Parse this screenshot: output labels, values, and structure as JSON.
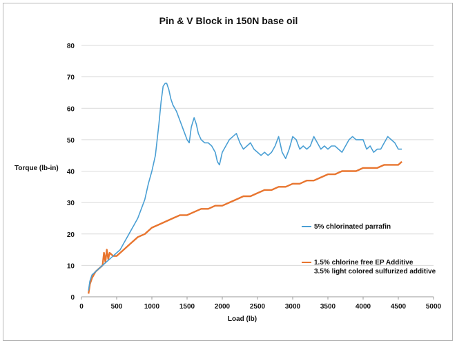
{
  "chart_data": {
    "type": "line",
    "title": "Pin & V Block in 150N base oil",
    "xlabel": "Load (lb)",
    "ylabel": "Torque (lb-in)",
    "xlim": [
      0,
      5000
    ],
    "ylim": [
      0,
      80
    ],
    "xticks": [
      "0",
      "500",
      "1000",
      "1500",
      "2000",
      "2500",
      "3000",
      "3500",
      "4000",
      "4500",
      "5000"
    ],
    "yticks": [
      "0",
      "10",
      "20",
      "30",
      "40",
      "50",
      "60",
      "70",
      "80"
    ],
    "grid": "horizontal",
    "legend_position": "right",
    "series": [
      {
        "name": "5% chlorinated parrafin",
        "color": "#4a9fd4",
        "x": [
          100,
          120,
          150,
          200,
          250,
          300,
          350,
          400,
          450,
          500,
          550,
          600,
          650,
          700,
          750,
          800,
          850,
          900,
          950,
          1000,
          1050,
          1100,
          1130,
          1160,
          1190,
          1210,
          1240,
          1270,
          1300,
          1350,
          1400,
          1450,
          1500,
          1530,
          1560,
          1600,
          1630,
          1660,
          1700,
          1750,
          1800,
          1850,
          1900,
          1930,
          1960,
          2000,
          2050,
          2100,
          2150,
          2200,
          2250,
          2300,
          2350,
          2400,
          2450,
          2500,
          2550,
          2600,
          2650,
          2700,
          2750,
          2800,
          2850,
          2900,
          2950,
          3000,
          3050,
          3100,
          3150,
          3200,
          3250,
          3300,
          3350,
          3400,
          3450,
          3500,
          3550,
          3600,
          3650,
          3700,
          3750,
          3800,
          3850,
          3900,
          3950,
          4000,
          4050,
          4100,
          4150,
          4200,
          4250,
          4300,
          4350,
          4400,
          4450,
          4500,
          4550
        ],
        "y": [
          2,
          5,
          7,
          8,
          9,
          10,
          11,
          12,
          13,
          14,
          15,
          17,
          19,
          21,
          23,
          25,
          28,
          31,
          36,
          40,
          45,
          55,
          62,
          67,
          68,
          68,
          66,
          63,
          61,
          59,
          56,
          53,
          50,
          49,
          54,
          57,
          55,
          52,
          50,
          49,
          49,
          48,
          46,
          43,
          42,
          46,
          48,
          50,
          51,
          52,
          49,
          47,
          48,
          49,
          47,
          46,
          45,
          46,
          45,
          46,
          48,
          51,
          46,
          44,
          47,
          51,
          50,
          47,
          48,
          47,
          48,
          51,
          49,
          47,
          48,
          47,
          48,
          48,
          47,
          46,
          48,
          50,
          51,
          50,
          50,
          50,
          47,
          48,
          46,
          47,
          47,
          49,
          51,
          50,
          49,
          47,
          47
        ]
      },
      {
        "name": "1.5% chlorine free EP Additive\n3.5% light colored sulfurized additive",
        "color": "#e8752f",
        "x": [
          100,
          120,
          150,
          200,
          250,
          300,
          320,
          340,
          360,
          380,
          400,
          450,
          500,
          600,
          700,
          800,
          900,
          1000,
          1100,
          1200,
          1300,
          1400,
          1500,
          1600,
          1700,
          1800,
          1900,
          2000,
          2100,
          2200,
          2300,
          2400,
          2500,
          2600,
          2700,
          2800,
          2900,
          3000,
          3100,
          3200,
          3300,
          3400,
          3500,
          3600,
          3700,
          3800,
          3900,
          4000,
          4100,
          4200,
          4300,
          4400,
          4500,
          4550
        ],
        "y": [
          1,
          4,
          6,
          8,
          9,
          10,
          14,
          11,
          15,
          12,
          14,
          13,
          13,
          15,
          17,
          19,
          20,
          22,
          23,
          24,
          25,
          26,
          26,
          27,
          28,
          28,
          29,
          29,
          30,
          31,
          32,
          32,
          33,
          34,
          34,
          35,
          35,
          36,
          36,
          37,
          37,
          38,
          39,
          39,
          40,
          40,
          40,
          41,
          41,
          41,
          42,
          42,
          42,
          43
        ]
      }
    ]
  }
}
